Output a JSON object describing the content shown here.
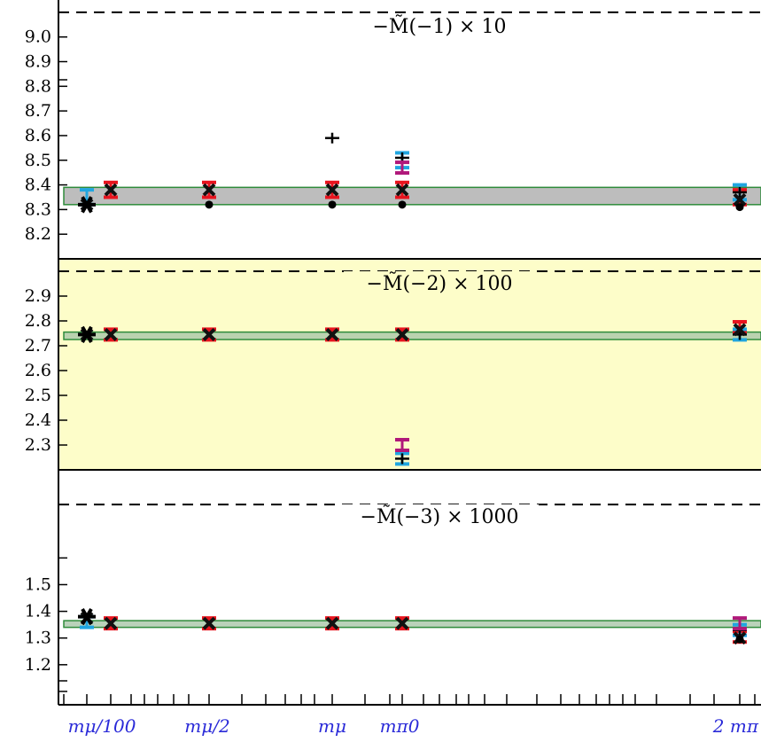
{
  "chart_data": {
    "type": "scatter",
    "x_categories": [
      "m_μ/100",
      "m_μ/2",
      "m_μ",
      "m_π⁰",
      "2 m_π"
    ],
    "x_tick_labels": [
      "mμ/100",
      "mμ/2",
      "mμ",
      "mπ0",
      "2 mπ"
    ],
    "colors": {
      "band_fill": "#bdbdbd",
      "band_edge": "#2e8b3a",
      "band_fill_light": "#a9c7a9",
      "panel2_bg": "#fdfdc9",
      "red": "#e8141e",
      "cyan": "#20a6e0",
      "magenta": "#b0187a",
      "purple": "#6a4c93",
      "black": "#000000",
      "x_label_color": "#2a2ad8"
    },
    "panels": [
      {
        "title": "−M̃(−1) × 10",
        "ylim": [
          8.1,
          9.15
        ],
        "yticks": [
          8.2,
          8.3,
          8.4,
          8.5,
          8.6,
          8.7,
          8.8,
          8.9,
          9.0
        ],
        "ytick_labels": [
          "8.2",
          "8.3",
          "8.4",
          "8.5",
          "8.6",
          "8.7",
          "8.8",
          "8.9",
          "9.0"
        ],
        "dashed_level": 9.1,
        "band": [
          8.32,
          8.39
        ],
        "star": 8.32,
        "series": [
          {
            "marker": "red_err",
            "x": [
              1,
              2,
              3,
              4,
              5
            ],
            "y": [
              8.38,
              8.38,
              8.38,
              8.38,
              8.35
            ],
            "err": 0.03
          },
          {
            "marker": "cyan_err",
            "x": [
              0,
              4,
              5
            ],
            "y": [
              8.35,
              8.5,
              8.37
            ],
            "err": 0.03
          },
          {
            "marker": "black_plus",
            "x": [
              3,
              4,
              5
            ],
            "y": [
              8.59,
              8.51,
              8.37
            ],
            "err": 0.02
          },
          {
            "marker": "magenta_err",
            "x": [
              4
            ],
            "y": [
              8.47
            ],
            "err": 0.02
          },
          {
            "marker": "black_x",
            "x": [
              0,
              1,
              2,
              3,
              4,
              5
            ],
            "y": [
              8.32,
              8.38,
              8.38,
              8.38,
              8.38,
              8.34
            ]
          },
          {
            "marker": "black_dot",
            "x": [
              2,
              3,
              4,
              5
            ],
            "y": [
              8.32,
              8.32,
              8.32,
              8.31
            ]
          }
        ]
      },
      {
        "title": "−M̃(−2) × 100",
        "ylim": [
          2.2,
          3.05
        ],
        "yticks": [
          2.3,
          2.4,
          2.5,
          2.6,
          2.7,
          2.8,
          2.9
        ],
        "ytick_labels": [
          "2.3",
          "2.4",
          "2.5",
          "2.6",
          "2.7",
          "2.8",
          "2.9"
        ],
        "dashed_level": 3.0,
        "band": [
          2.725,
          2.755
        ],
        "star": 2.745,
        "series": [
          {
            "marker": "red_err",
            "x": [
              1,
              2,
              3,
              4,
              5
            ],
            "y": [
              2.745,
              2.745,
              2.745,
              2.745,
              2.775
            ],
            "err": 0.012
          },
          {
            "marker": "cyan_err",
            "x": [
              4,
              5
            ],
            "y": [
              2.245,
              2.745
            ],
            "err": 0.012
          },
          {
            "marker": "black_plus",
            "x": [
              4,
              5
            ],
            "y": [
              2.245,
              2.745
            ],
            "err": 0.012
          },
          {
            "marker": "magenta_err",
            "x": [
              4
            ],
            "y": [
              2.3
            ],
            "err": 0.012
          },
          {
            "marker": "black_x",
            "x": [
              0,
              1,
              2,
              3,
              4,
              5
            ],
            "y": [
              2.745,
              2.745,
              2.745,
              2.745,
              2.745,
              2.765
            ]
          }
        ]
      },
      {
        "title": "−M̃(−3) × 1000",
        "ylim": [
          1.05,
          1.93
        ],
        "yticks": [
          1.1,
          1.2,
          1.3,
          1.4,
          1.5,
          1.6
        ],
        "ytick_labels": [
          "",
          "1.2",
          "1.3",
          "1.4",
          "1.5",
          ""
        ],
        "dashed_level": 1.8,
        "band": [
          1.34,
          1.365
        ],
        "star": 1.38,
        "series": [
          {
            "marker": "red_err",
            "x": [
              1,
              2,
              3,
              4,
              5
            ],
            "y": [
              1.355,
              1.355,
              1.355,
              1.355,
              1.305
            ],
            "err": 0.012
          },
          {
            "marker": "cyan_err",
            "x": [
              0,
              5
            ],
            "y": [
              1.36,
              1.33
            ],
            "err": 0.012
          },
          {
            "marker": "black_plus",
            "x": [
              5
            ],
            "y": [
              1.33
            ],
            "err": 0.012
          },
          {
            "marker": "magenta_err",
            "x": [
              5
            ],
            "y": [
              1.355
            ],
            "err": 0.012
          },
          {
            "marker": "black_x",
            "x": [
              0,
              1,
              2,
              3,
              4,
              5
            ],
            "y": [
              1.375,
              1.355,
              1.355,
              1.355,
              1.355,
              1.3
            ]
          },
          {
            "marker": "black_dot",
            "x": [
              5
            ],
            "y": [
              1.295
            ]
          }
        ]
      }
    ]
  }
}
